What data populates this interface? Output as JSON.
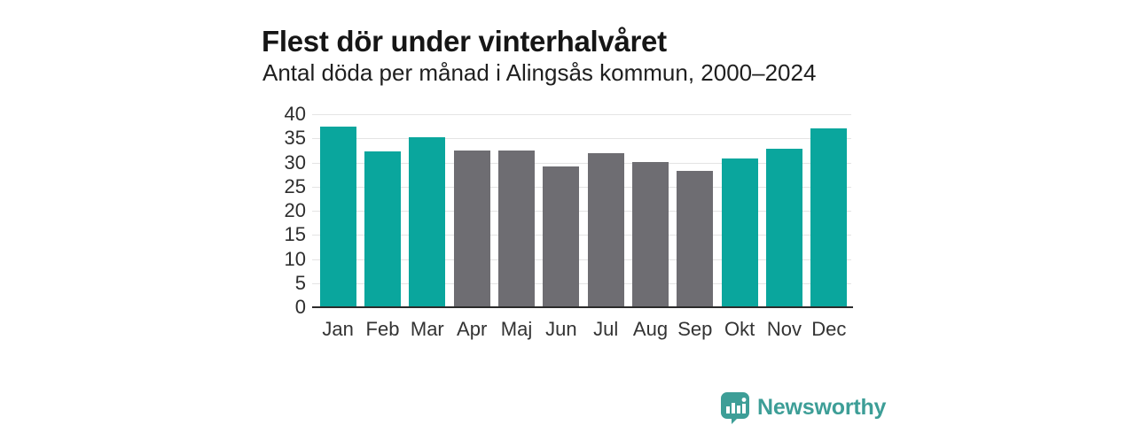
{
  "header": {
    "title": "Flest dör under vinterhalvåret",
    "subtitle": "Antal döda per månad i Alingsås kommun, 2000–2024"
  },
  "colors": {
    "winter": "#0aa69d",
    "summer": "#6e6d72",
    "grid": "#e4e4e4",
    "axis": "#2b2b2b",
    "logo": "#3d9e97"
  },
  "logo": {
    "text": "Newsworthy",
    "icon": "bar-chart-speech-bubble-icon"
  },
  "chart_data": {
    "type": "bar",
    "title": "Flest dör under vinterhalvåret",
    "subtitle": "Antal döda per månad i Alingsås kommun, 2000–2024",
    "categories": [
      "Jan",
      "Feb",
      "Mar",
      "Apr",
      "Maj",
      "Jun",
      "Jul",
      "Aug",
      "Sep",
      "Okt",
      "Nov",
      "Dec"
    ],
    "values": [
      37.5,
      32.3,
      35.2,
      32.4,
      32.4,
      29.1,
      32.0,
      30.1,
      28.2,
      30.8,
      32.9,
      37.0
    ],
    "bar_groups": [
      "winter",
      "winter",
      "winter",
      "summer",
      "summer",
      "summer",
      "summer",
      "summer",
      "summer",
      "winter",
      "winter",
      "winter"
    ],
    "xlabel": "",
    "ylabel": "",
    "ylim": [
      0,
      40
    ],
    "ytick_step": 5,
    "yticks": [
      0,
      5,
      10,
      15,
      20,
      25,
      30,
      35,
      40
    ],
    "grid": true,
    "legend": false
  }
}
